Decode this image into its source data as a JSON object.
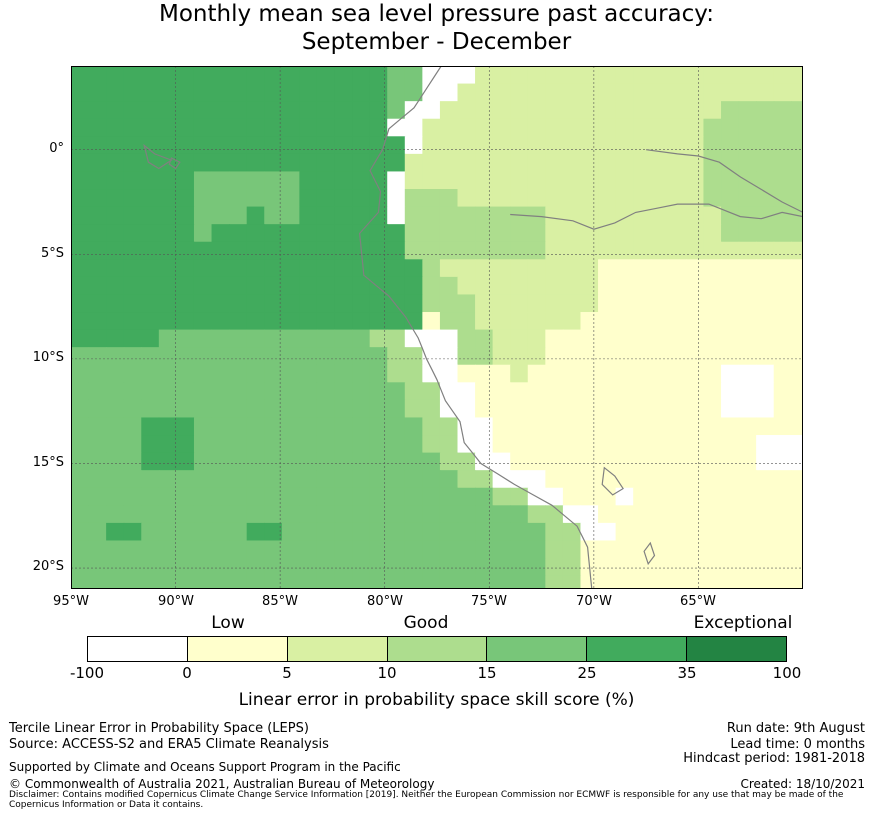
{
  "title": {
    "line1": "Monthly mean sea level pressure past accuracy:",
    "line2": "September - December"
  },
  "map": {
    "region": "Pacific coast of South America (Ecuador, Peru, northern Chile)",
    "lon_range": [
      -95,
      -60
    ],
    "lat_range": [
      -21,
      4
    ],
    "y_ticks": [
      "0°",
      "5°S",
      "10°S",
      "15°S",
      "20°S"
    ],
    "x_ticks": [
      "95°W",
      "90°W",
      "85°W",
      "80°W",
      "75°W",
      "70°W",
      "65°W"
    ],
    "gridlines": "dashed",
    "coastline_color": "#808080"
  },
  "legend": {
    "categories": [
      "Low",
      "Good",
      "Exceptional"
    ],
    "ticks": [
      "-100",
      "0",
      "5",
      "10",
      "15",
      "25",
      "35",
      "100"
    ],
    "colors": [
      "#ffffff",
      "#ffffcc",
      "#d9f0a3",
      "#addd8e",
      "#78c679",
      "#41ab5d",
      "#238443"
    ],
    "title": "Linear error in probability space skill score (%)"
  },
  "footer": {
    "method": "Tercile Linear Error in Probability Space (LEPS)",
    "source": "Source: ACCESS-S2 and ERA5 Climate Reanalysis",
    "support": "Supported by Climate and Oceans Support Program in the Pacific",
    "copyright": "© Commonwealth of Australia 2021, Australian Bureau of Meteorology",
    "run_date": "Run date: 9th August",
    "lead_time": "Lead time: 0 months",
    "hindcast": "Hindcast period: 1981-2018",
    "created": "Created: 18/10/2021",
    "disclaimer": "Disclaimer: Contains modified Copernicus Climate Change Service Information [2019]. Neither the European Commission nor ECMWF is responsible for any use that may be made of the Copernicus Information or Data it contains."
  }
}
